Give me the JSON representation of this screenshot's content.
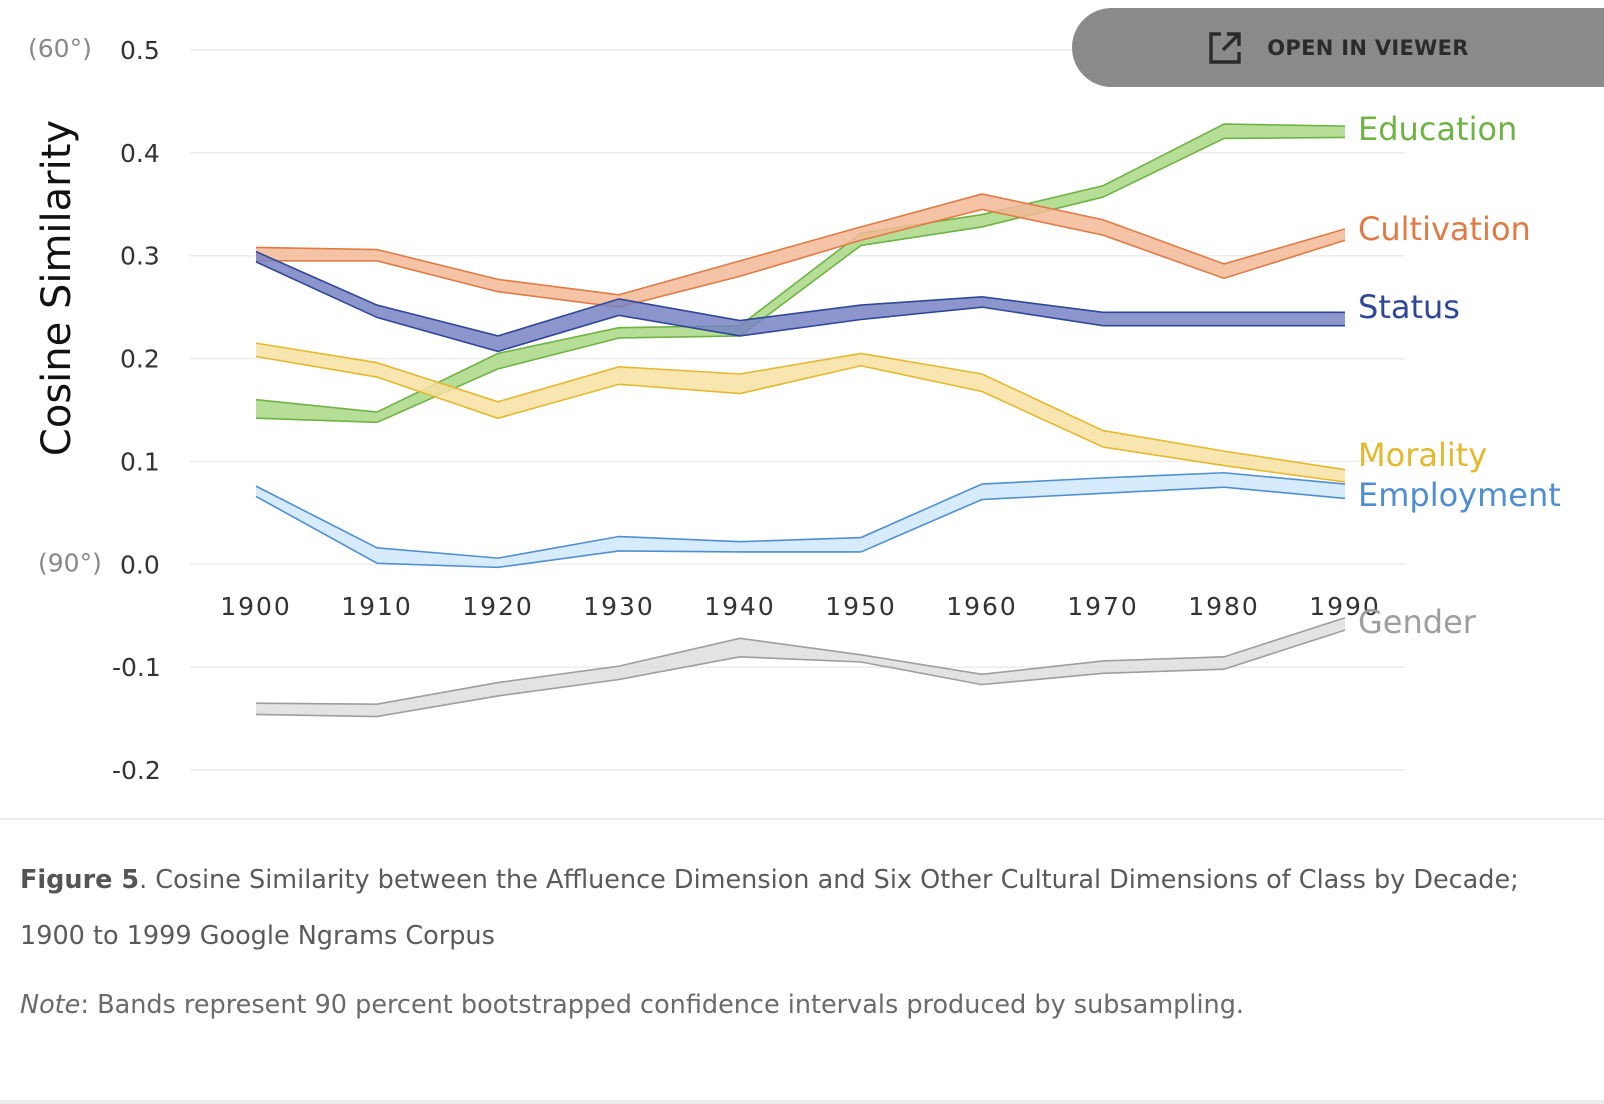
{
  "viewer_button": {
    "label": "OPEN IN VIEWER",
    "icon": "open-external-icon"
  },
  "caption": {
    "figure_label": "Figure 5",
    "text": ". Cosine Similarity between the Affluence Dimension and Six Other Cultural Dimensions of Class by Decade; 1900 to 1999 Google Ngrams Corpus"
  },
  "note": {
    "label": "Note",
    "text": ": Bands represent 90 percent bootstrapped confidence intervals produced by subsampling."
  },
  "chart_data": {
    "type": "line",
    "ylabel": "Cosine Similarity",
    "ylim": [
      -0.2,
      0.5
    ],
    "yticks": [
      {
        "value": 0.5,
        "label": "0.5",
        "angle_label": "(60°)"
      },
      {
        "value": 0.4,
        "label": "0.4"
      },
      {
        "value": 0.3,
        "label": "0.3"
      },
      {
        "value": 0.2,
        "label": "0.2"
      },
      {
        "value": 0.1,
        "label": "0.1"
      },
      {
        "value": 0.0,
        "label": "0.0",
        "angle_label": "(90°)"
      },
      {
        "value": -0.1,
        "label": "-0.1"
      },
      {
        "value": -0.2,
        "label": "-0.2"
      }
    ],
    "x": [
      "1900",
      "1910",
      "1920",
      "1930",
      "1940",
      "1950",
      "1960",
      "1970",
      "1980",
      "1990"
    ],
    "grid": true,
    "series": [
      {
        "name": "Education",
        "color": "#6fb345",
        "fill": "#a9d884",
        "upper": [
          0.16,
          0.148,
          0.205,
          0.23,
          0.232,
          0.322,
          0.34,
          0.368,
          0.428,
          0.426
        ],
        "lower": [
          0.142,
          0.138,
          0.19,
          0.22,
          0.222,
          0.31,
          0.328,
          0.357,
          0.414,
          0.415
        ]
      },
      {
        "name": "Cultivation",
        "color": "#e07b45",
        "fill": "#f3b997",
        "upper": [
          0.308,
          0.306,
          0.277,
          0.262,
          0.295,
          0.328,
          0.36,
          0.335,
          0.292,
          0.326
        ],
        "lower": [
          0.295,
          0.295,
          0.265,
          0.25,
          0.28,
          0.315,
          0.345,
          0.32,
          0.278,
          0.315
        ]
      },
      {
        "name": "Status",
        "color": "#2f4798",
        "fill": "#7884c4",
        "upper": [
          0.304,
          0.252,
          0.222,
          0.258,
          0.237,
          0.252,
          0.26,
          0.245,
          0.245,
          0.245
        ],
        "lower": [
          0.294,
          0.24,
          0.207,
          0.242,
          0.222,
          0.238,
          0.25,
          0.232,
          0.232,
          0.232
        ]
      },
      {
        "name": "Morality",
        "color": "#e4b92e",
        "fill": "#f7e0a1",
        "upper": [
          0.215,
          0.196,
          0.158,
          0.192,
          0.185,
          0.205,
          0.185,
          0.13,
          0.11,
          0.092
        ],
        "lower": [
          0.202,
          0.182,
          0.142,
          0.175,
          0.166,
          0.193,
          0.168,
          0.114,
          0.096,
          0.08
        ]
      },
      {
        "name": "Employment",
        "color": "#4f8fd1",
        "fill": "#cfe8fb",
        "upper": [
          0.076,
          0.016,
          0.006,
          0.027,
          0.022,
          0.026,
          0.078,
          0.084,
          0.089,
          0.078
        ],
        "lower": [
          0.066,
          0.001,
          -0.003,
          0.013,
          0.012,
          0.012,
          0.063,
          0.069,
          0.075,
          0.064
        ]
      },
      {
        "name": "Gender",
        "color": "#9e9e9e",
        "fill": "#dedede",
        "upper": [
          -0.135,
          -0.136,
          -0.115,
          -0.099,
          -0.072,
          -0.088,
          -0.107,
          -0.094,
          -0.09,
          -0.052
        ],
        "lower": [
          -0.146,
          -0.148,
          -0.128,
          -0.112,
          -0.09,
          -0.095,
          -0.117,
          -0.106,
          -0.102,
          -0.064
        ]
      }
    ]
  }
}
